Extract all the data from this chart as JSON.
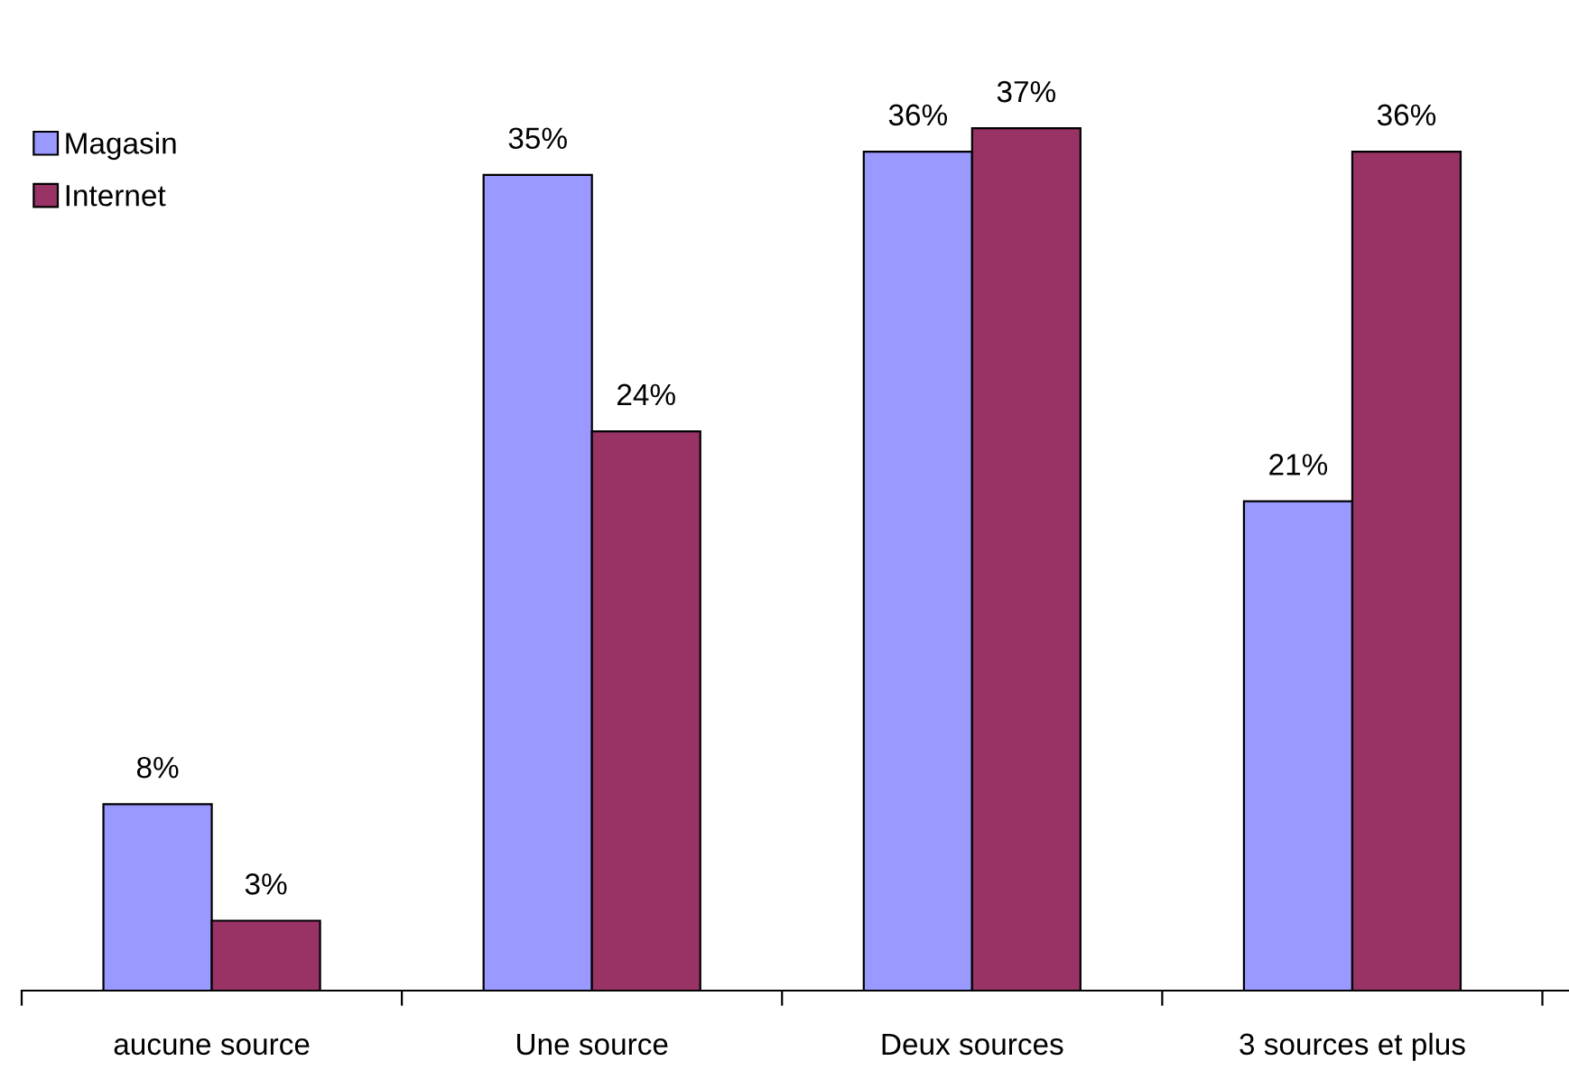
{
  "chart_data": {
    "type": "bar",
    "categories": [
      "aucune source",
      "Une source",
      "Deux sources",
      "3 sources et plus"
    ],
    "series": [
      {
        "name": "Magasin",
        "color": "#9999ff",
        "values": [
          8,
          35,
          36,
          21
        ],
        "value_labels": [
          "8%",
          "35%",
          "36%",
          "21%"
        ]
      },
      {
        "name": "Internet",
        "color": "#993366",
        "values": [
          3,
          24,
          37,
          36
        ],
        "value_labels": [
          "3%",
          "24%",
          "37%",
          "36%"
        ]
      }
    ],
    "legend": "top left",
    "grid": false
  }
}
